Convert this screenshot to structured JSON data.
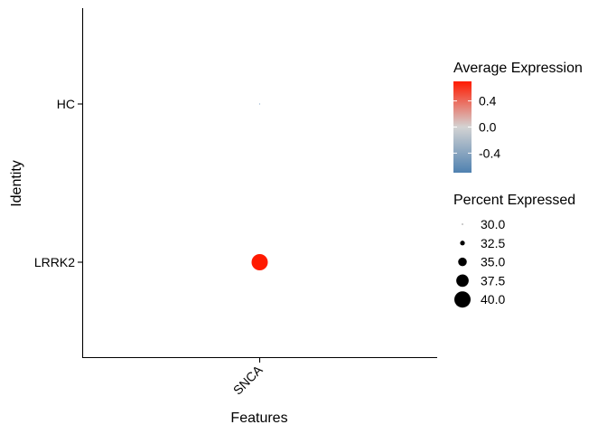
{
  "chart_data": {
    "type": "dotplot",
    "title": "",
    "xlabel": "Features",
    "ylabel": "Identity",
    "features": [
      "SNCA"
    ],
    "identities": [
      "HC",
      "LRRK2"
    ],
    "points": [
      {
        "feature": "SNCA",
        "identity": "HC",
        "avg_expression": -0.7,
        "pct_expressed": 30.0
      },
      {
        "feature": "SNCA",
        "identity": "LRRK2",
        "avg_expression": 0.7,
        "pct_expressed": 40.0
      }
    ],
    "color_legend": {
      "title": "Average Expression",
      "range": [
        -0.7,
        0.7
      ],
      "ticks": [
        -0.4,
        0.0,
        0.4
      ],
      "tick_labels": [
        "-0.4",
        "0.0",
        "0.4"
      ],
      "low_color": "#4F81B0",
      "mid_color": "#D3D3D3",
      "high_color": "#FF1A00"
    },
    "size_legend": {
      "title": "Percent Expressed",
      "values": [
        30.0,
        32.5,
        35.0,
        37.5,
        40.0
      ],
      "labels": [
        "30.0",
        "32.5",
        "35.0",
        "37.5",
        "40.0"
      ]
    },
    "grid": false,
    "legend_position": "right"
  }
}
